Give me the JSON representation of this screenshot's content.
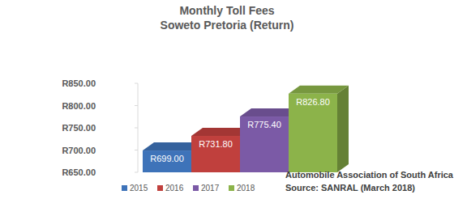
{
  "chart_data": {
    "type": "bar",
    "title": "Monthly Toll Fees",
    "subtitle": "Soweto Pretoria (Return)",
    "categories": [
      "2015",
      "2016",
      "2017",
      "2018"
    ],
    "values": [
      699.0,
      731.8,
      775.4,
      826.8
    ],
    "value_labels": [
      "R699.00",
      "R731.80",
      "R775.40",
      "R826.80"
    ],
    "colors": [
      "#3e73b9",
      "#c0403d",
      "#7b5aa6",
      "#8cb34a"
    ],
    "ylim": [
      650,
      850
    ],
    "yticks": [
      {
        "value": 650,
        "label": "R650.00"
      },
      {
        "value": 700,
        "label": "R700.00"
      },
      {
        "value": 750,
        "label": "R750.00"
      },
      {
        "value": 800,
        "label": "R800.00"
      },
      {
        "value": 850,
        "label": "R850.00"
      }
    ],
    "grid": false,
    "legend": "bottom",
    "data_labels": true,
    "tick_labels": "y",
    "annotations": [
      "Automobile Association of South Africa",
      "Source: SANRAL (March 2018)"
    ]
  }
}
